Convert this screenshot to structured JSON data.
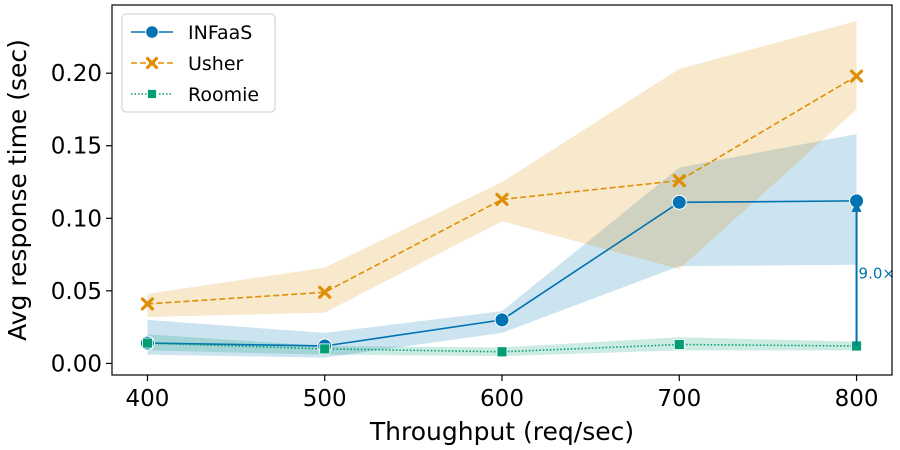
{
  "chart_data": {
    "type": "line",
    "xlabel": "Throughput (req/sec)",
    "ylabel": "Avg response time (sec)",
    "x": [
      400,
      500,
      600,
      700,
      800
    ],
    "xlim": [
      380,
      820
    ],
    "ylim": [
      -0.008,
      0.247
    ],
    "xticks": [
      400,
      500,
      600,
      700,
      800
    ],
    "yticks": [
      0.0,
      0.05,
      0.1,
      0.15,
      0.2
    ],
    "ytick_labels": [
      "0.00",
      "0.05",
      "0.10",
      "0.15",
      "0.20"
    ],
    "legend_position": "top-left",
    "grid": false,
    "series": [
      {
        "name": "INFaaS",
        "color": "#0173b2",
        "linestyle": "solid",
        "marker": "circle",
        "values": [
          0.014,
          0.012,
          0.03,
          0.111,
          0.112
        ],
        "ci_low": [
          0.006,
          0.004,
          0.021,
          0.067,
          0.068
        ],
        "ci_high": [
          0.03,
          0.021,
          0.036,
          0.135,
          0.158
        ]
      },
      {
        "name": "Usher",
        "color": "#de8f05",
        "linestyle": "dashed",
        "marker": "x",
        "values": [
          0.041,
          0.049,
          0.113,
          0.126,
          0.198
        ],
        "ci_low": [
          0.032,
          0.035,
          0.098,
          0.065,
          0.175
        ],
        "ci_high": [
          0.048,
          0.066,
          0.125,
          0.203,
          0.236
        ]
      },
      {
        "name": "Roomie",
        "color": "#029e73",
        "linestyle": "dotted",
        "marker": "square",
        "values": [
          0.014,
          0.01,
          0.008,
          0.013,
          0.012
        ],
        "ci_low": [
          0.009,
          0.006,
          0.005,
          0.009,
          0.009
        ],
        "ci_high": [
          0.02,
          0.012,
          0.011,
          0.018,
          0.015
        ]
      }
    ],
    "annotation": {
      "text": "9.0×",
      "x": 800,
      "from": 0.012,
      "to": 0.112,
      "color": "#0173b2"
    }
  }
}
